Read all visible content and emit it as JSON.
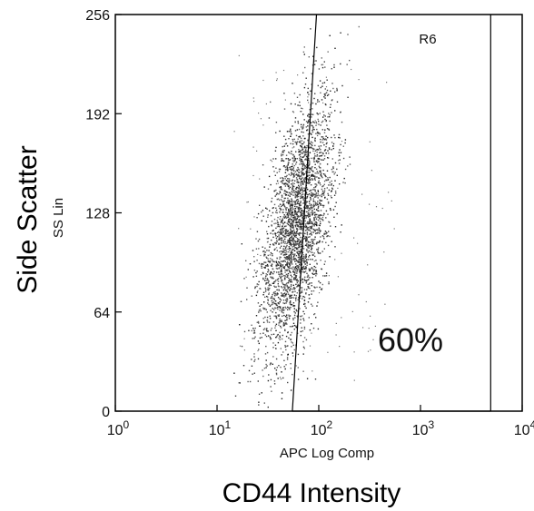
{
  "chart_data": {
    "type": "scatter",
    "x_scale": "log",
    "xlim": [
      1,
      10000
    ],
    "ylim": [
      0,
      256
    ],
    "x_ticks": [
      {
        "value": 1,
        "base": "10",
        "exp": "0"
      },
      {
        "value": 10,
        "base": "10",
        "exp": "1"
      },
      {
        "value": 100,
        "base": "10",
        "exp": "2"
      },
      {
        "value": 1000,
        "base": "10",
        "exp": "3"
      },
      {
        "value": 10000,
        "base": "10",
        "exp": "4"
      }
    ],
    "y_ticks": [
      {
        "value": 0,
        "label": "0"
      },
      {
        "value": 64,
        "label": "64"
      },
      {
        "value": 128,
        "label": "128"
      },
      {
        "value": 192,
        "label": "192"
      },
      {
        "value": 256,
        "label": "256"
      }
    ],
    "xlabel": "APC Log Comp",
    "xlabel_main": "CD44 Intensity",
    "ylabel": "SS Lin",
    "ylabel_main": "Side Scatter",
    "gate": {
      "name": "R6",
      "percent_label": "60%",
      "x_bottom_left": 55,
      "x_top_left": 95,
      "x_right": 4900,
      "y_range": [
        0,
        256
      ]
    },
    "population": {
      "center_x": 60,
      "center_y": 120,
      "log_sd_x": 0.18,
      "sd_y": 42,
      "event_count_shown": 3000
    }
  }
}
